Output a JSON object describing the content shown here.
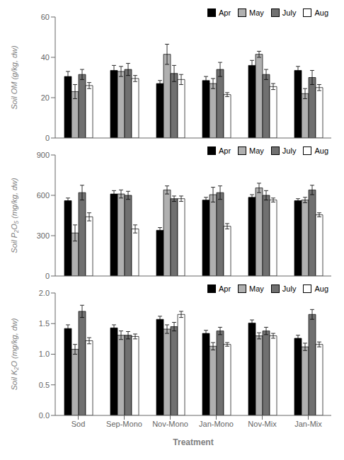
{
  "chart_data": [
    {
      "type": "bar",
      "categories": [
        "Sod",
        "Sep-Mono",
        "Nov-Mono",
        "Jan-Mono",
        "Nov-Mix",
        "Jan-Mix"
      ],
      "ylabel": "Soil OM (g/kg, dw)",
      "ylim": [
        0,
        60
      ],
      "yticks": [
        0,
        20,
        40,
        60
      ],
      "legend": "upper right",
      "tick_labels": "y",
      "series": [
        {
          "name": "Apr",
          "color": "#000000",
          "values": [
            30.5,
            33.5,
            27.0,
            28.5,
            36.0,
            33.5
          ],
          "errors": [
            2.5,
            2.5,
            1.5,
            2.0,
            2.5,
            2.0
          ]
        },
        {
          "name": "May",
          "color": "#b0b0b0",
          "values": [
            23.0,
            33.0,
            41.5,
            27.0,
            41.5,
            22.0
          ],
          "errors": [
            3.5,
            2.5,
            5.0,
            2.5,
            1.5,
            2.5
          ]
        },
        {
          "name": "July",
          "color": "#707070",
          "values": [
            31.5,
            34.0,
            32.0,
            34.0,
            31.5,
            30.0
          ],
          "errors": [
            2.5,
            3.0,
            4.0,
            3.5,
            2.5,
            3.5
          ]
        },
        {
          "name": "Aug",
          "color": "#ffffff",
          "values": [
            26.0,
            29.5,
            29.0,
            21.5,
            25.5,
            25.0
          ],
          "errors": [
            1.5,
            1.5,
            2.5,
            1.0,
            1.5,
            1.5
          ]
        }
      ]
    },
    {
      "type": "bar",
      "categories": [
        "Sod",
        "Sep-Mono",
        "Nov-Mono",
        "Jan-Mono",
        "Nov-Mix",
        "Jan-Mix"
      ],
      "ylabel": "Soil P₂O₅ (mg/kg, dw)",
      "ylim": [
        0,
        900
      ],
      "yticks": [
        0,
        300,
        600,
        900
      ],
      "legend": "upper right",
      "tick_labels": "y",
      "series": [
        {
          "name": "Apr",
          "color": "#000000",
          "values": [
            560,
            610,
            340,
            565,
            585,
            560
          ],
          "errors": [
            20,
            25,
            20,
            20,
            20,
            15
          ]
        },
        {
          "name": "May",
          "color": "#b0b0b0",
          "values": [
            320,
            610,
            640,
            605,
            655,
            565
          ],
          "errors": [
            60,
            30,
            30,
            55,
            35,
            20
          ]
        },
        {
          "name": "July",
          "color": "#707070",
          "values": [
            620,
            600,
            575,
            620,
            600,
            640
          ],
          "errors": [
            55,
            30,
            20,
            50,
            35,
            35
          ]
        },
        {
          "name": "Aug",
          "color": "#ffffff",
          "values": [
            440,
            350,
            575,
            370,
            565,
            455
          ],
          "errors": [
            30,
            30,
            20,
            20,
            15,
            15
          ]
        }
      ]
    },
    {
      "type": "bar",
      "categories": [
        "Sod",
        "Sep-Mono",
        "Nov-Mono",
        "Jan-Mono",
        "Nov-Mix",
        "Jan-Mix"
      ],
      "xlabel": "Treatment",
      "ylabel": "Soil K₂O (mg/kg, dw)",
      "ylim": [
        0.0,
        2.0
      ],
      "yticks": [
        {
          "value": 0.0,
          "label": "0.0"
        },
        0.5,
        {
          "value": 1.0,
          "label": "1.0"
        },
        1.5,
        {
          "value": 2.0,
          "label": "2.0"
        }
      ],
      "legend": "upper right",
      "series": [
        {
          "name": "Apr",
          "color": "#000000",
          "values": [
            1.42,
            1.43,
            1.57,
            1.34,
            1.51,
            1.26
          ],
          "errors": [
            0.06,
            0.05,
            0.05,
            0.05,
            0.05,
            0.05
          ]
        },
        {
          "name": "May",
          "color": "#b0b0b0",
          "values": [
            1.08,
            1.31,
            1.41,
            1.13,
            1.3,
            1.12
          ],
          "errors": [
            0.08,
            0.07,
            0.07,
            0.06,
            0.05,
            0.06
          ]
        },
        {
          "name": "July",
          "color": "#707070",
          "values": [
            1.7,
            1.31,
            1.45,
            1.38,
            1.38,
            1.65
          ],
          "errors": [
            0.1,
            0.06,
            0.07,
            0.06,
            0.06,
            0.08
          ]
        },
        {
          "name": "Aug",
          "color": "#ffffff",
          "values": [
            1.22,
            1.29,
            1.65,
            1.16,
            1.3,
            1.16
          ],
          "errors": [
            0.05,
            0.04,
            0.05,
            0.03,
            0.04,
            0.04
          ]
        }
      ]
    }
  ]
}
